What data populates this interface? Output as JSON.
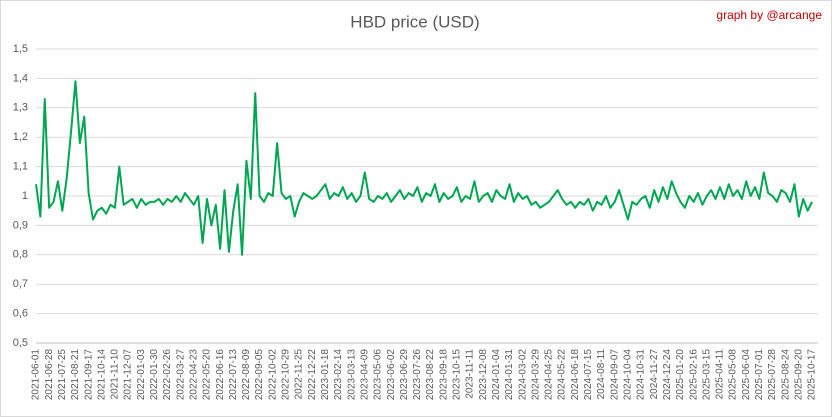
{
  "chart_data": {
    "type": "line",
    "title": "HBD price (USD)",
    "annotation": "graph by @arcange",
    "categories": [
      "2021-06-01",
      null,
      null,
      "2021-06-28",
      null,
      null,
      "2021-07-25",
      null,
      null,
      "2021-08-21",
      null,
      null,
      "2021-09-17",
      null,
      null,
      "2021-10-14",
      null,
      null,
      "2021-11-10",
      null,
      null,
      "2021-12-07",
      null,
      null,
      "2022-01-03",
      null,
      null,
      "2022-01-30",
      null,
      null,
      "2022-02-26",
      null,
      null,
      "2022-03-27",
      null,
      null,
      "2022-04-23",
      null,
      null,
      "2022-05-20",
      null,
      null,
      "2022-06-16",
      null,
      null,
      "2022-07-13",
      null,
      null,
      "2022-08-09",
      null,
      null,
      "2022-09-05",
      null,
      null,
      "2022-10-02",
      null,
      null,
      "2022-10-29",
      null,
      null,
      "2022-11-25",
      null,
      null,
      "2022-12-22",
      null,
      null,
      "2023-01-18",
      null,
      null,
      "2023-02-14",
      null,
      null,
      "2023-03-13",
      null,
      null,
      "2023-04-09",
      null,
      null,
      "2023-05-06",
      null,
      null,
      "2023-06-02",
      null,
      null,
      "2023-06-29",
      null,
      null,
      "2023-07-26",
      null,
      null,
      "2023-08-22",
      null,
      null,
      "2023-09-18",
      null,
      null,
      "2023-10-15",
      null,
      null,
      "2023-11-11",
      null,
      null,
      "2023-12-08",
      null,
      null,
      "2024-01-04",
      null,
      null,
      "2024-01-31",
      null,
      null,
      "2024-03-02",
      null,
      null,
      "2024-03-29",
      null,
      null,
      "2024-04-25",
      null,
      null,
      "2024-05-22",
      null,
      null,
      "2024-06-18",
      null,
      null,
      "2024-07-15",
      null,
      null,
      "2024-08-11",
      null,
      null,
      "2024-09-07",
      null,
      null,
      "2024-10-04",
      null,
      null,
      "2024-10-31",
      null,
      null,
      "2024-11-27",
      null,
      null,
      "2024-12-24",
      null,
      null,
      "2025-01-20",
      null,
      null,
      "2025-02-16",
      null,
      null,
      "2025-03-15",
      null,
      null,
      "2025-04-11",
      null,
      null,
      "2025-05-08",
      null,
      null,
      "2025-06-04",
      null,
      null,
      "2025-07-01",
      null,
      null,
      "2025-07-28",
      null,
      null,
      "2025-08-24",
      null,
      null,
      "2025-09-20",
      null,
      null,
      "2025-10-17"
    ],
    "series": [
      {
        "name": "HBD price",
        "color": "#00a651",
        "values": [
          1.04,
          0.93,
          1.33,
          0.96,
          0.98,
          1.05,
          0.95,
          1.06,
          1.22,
          1.39,
          1.18,
          1.27,
          1.01,
          0.92,
          0.95,
          0.96,
          0.94,
          0.97,
          0.96,
          1.1,
          0.97,
          0.98,
          0.99,
          0.96,
          0.99,
          0.97,
          0.98,
          0.98,
          0.99,
          0.97,
          0.99,
          0.98,
          1.0,
          0.98,
          1.01,
          0.99,
          0.97,
          1.0,
          0.84,
          0.99,
          0.9,
          0.97,
          0.82,
          1.02,
          0.81,
          0.95,
          1.04,
          0.8,
          1.12,
          0.99,
          1.35,
          1.0,
          0.98,
          1.01,
          1.0,
          1.18,
          1.01,
          0.99,
          1.0,
          0.93,
          0.98,
          1.01,
          1.0,
          0.99,
          1.0,
          1.02,
          1.04,
          0.99,
          1.01,
          1.0,
          1.03,
          0.99,
          1.01,
          0.98,
          1.0,
          1.08,
          0.99,
          0.98,
          1.0,
          0.99,
          1.01,
          0.98,
          1.0,
          1.02,
          0.99,
          1.01,
          1.0,
          1.03,
          0.98,
          1.01,
          1.0,
          1.04,
          0.98,
          1.01,
          0.99,
          1.0,
          1.03,
          0.98,
          1.0,
          0.99,
          1.05,
          0.98,
          1.0,
          1.01,
          0.98,
          1.02,
          1.0,
          0.99,
          1.04,
          0.98,
          1.01,
          0.99,
          1.0,
          0.97,
          0.98,
          0.96,
          0.97,
          0.98,
          1.0,
          1.02,
          0.99,
          0.97,
          0.98,
          0.96,
          0.98,
          0.97,
          0.99,
          0.95,
          0.98,
          0.97,
          1.0,
          0.96,
          0.98,
          1.02,
          0.97,
          0.92,
          0.98,
          0.97,
          0.99,
          1.0,
          0.96,
          1.02,
          0.98,
          1.03,
          0.99,
          1.05,
          1.01,
          0.98,
          0.96,
          1.0,
          0.98,
          1.01,
          0.97,
          1.0,
          1.02,
          0.99,
          1.03,
          0.99,
          1.04,
          1.0,
          1.02,
          0.99,
          1.05,
          1.0,
          1.03,
          0.99,
          1.08,
          1.01,
          1.0,
          0.98,
          1.02,
          1.01,
          0.98,
          1.04,
          0.93,
          0.99,
          0.95,
          0.98
        ]
      }
    ],
    "ylim": [
      0.5,
      1.5
    ],
    "yticks": [
      {
        "value": 0.5,
        "label": "0,5"
      },
      {
        "value": 0.6,
        "label": "0,6"
      },
      {
        "value": 0.7,
        "label": "0,7"
      },
      {
        "value": 0.8,
        "label": "0,8"
      },
      {
        "value": 0.9,
        "label": "0,9"
      },
      {
        "value": 1,
        "label": "1"
      },
      {
        "value": 1.1,
        "label": "1,1"
      },
      {
        "value": 1.2,
        "label": "1,2"
      },
      {
        "value": 1.3,
        "label": "1,3"
      },
      {
        "value": 1.4,
        "label": "1,4"
      },
      {
        "value": 1.5,
        "label": "1,5"
      }
    ],
    "grid": true
  }
}
